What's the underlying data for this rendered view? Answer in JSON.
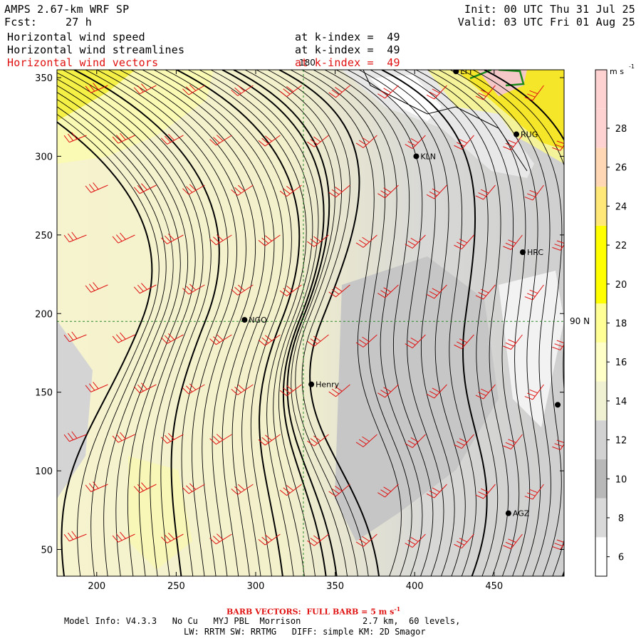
{
  "header": {
    "model": "AMPS 2.67-km WRF SP",
    "fcst_label": "Fcst:",
    "fcst_value": "27 h",
    "init": "Init: 00 UTC Thu 31 Jul 25",
    "valid": "Valid: 03 UTC Fri 01 Aug 25"
  },
  "fields": [
    {
      "name": "Horizontal wind speed",
      "level": "at k-index =  49",
      "color": "#000000"
    },
    {
      "name": "Horizontal wind streamlines",
      "level": "at k-index =  49",
      "color": "#000000"
    },
    {
      "name": "Horizontal wind vectors",
      "level": "at k-index =  49",
      "color": "#e01010"
    }
  ],
  "map": {
    "x_ticks": [
      "200",
      "250",
      "300",
      "350",
      "400",
      "450"
    ],
    "y_ticks": [
      "50",
      "100",
      "150",
      "200",
      "250",
      "300",
      "350"
    ],
    "x_range": [
      175,
      494
    ],
    "y_range": [
      33,
      355
    ],
    "grid_label_lon": "180",
    "grid_label_lat": "90 N",
    "meridian_x": 330,
    "parallel_y": 195,
    "stations": [
      {
        "id": "LTT",
        "x": 426,
        "y": 354
      },
      {
        "id": "RUG",
        "x": 464,
        "y": 314
      },
      {
        "id": "KLN",
        "x": 401,
        "y": 300
      },
      {
        "id": "HRC",
        "x": 468,
        "y": 239
      },
      {
        "id": "NGO",
        "x": 293,
        "y": 196
      },
      {
        "id": "Henry",
        "x": 335,
        "y": 155
      },
      {
        "id": "",
        "x": 490,
        "y": 142
      },
      {
        "id": "AGZ",
        "x": 459,
        "y": 73
      }
    ]
  },
  "colorbar": {
    "units": "m s",
    "units_exp": "-1",
    "labels": [
      "6",
      "8",
      "10",
      "12",
      "14",
      "16",
      "18",
      "20",
      "22",
      "24",
      "26",
      "28"
    ],
    "bins": [
      {
        "from": 5,
        "to": 7,
        "color": "#ffffff"
      },
      {
        "from": 7,
        "to": 9,
        "color": "#d9d9d9"
      },
      {
        "from": 9,
        "to": 11,
        "color": "#b8b8b8"
      },
      {
        "from": 11,
        "to": 13,
        "color": "#d2d2d2"
      },
      {
        "from": 13,
        "to": 15,
        "color": "#f0f0d2"
      },
      {
        "from": 15,
        "to": 17,
        "color": "#ffffc8"
      },
      {
        "from": 17,
        "to": 19,
        "color": "#ffff96"
      },
      {
        "from": 19,
        "to": 21,
        "color": "#ffff00"
      },
      {
        "from": 21,
        "to": 23,
        "color": "#ffff00"
      },
      {
        "from": 23,
        "to": 25,
        "color": "#ffe878"
      },
      {
        "from": 25,
        "to": 27,
        "color": "#ffd7b4"
      },
      {
        "from": 27,
        "to": 29,
        "color": "#ffd2d2"
      },
      {
        "from": 29,
        "to": 31,
        "color": "#ffd2d2"
      }
    ]
  },
  "footer": {
    "barb": "BARB VECTORS:  FULL BARB = 5 m s",
    "barb_exp": "-1",
    "model_info": "Model Info: V4.3.3   No Cu   MYJ PBL  Morrison            2.7 km,  60 levels,",
    "physics": "LW: RRTM SW: RRTMG   DIFF: simple KM: 2D Smagor"
  }
}
